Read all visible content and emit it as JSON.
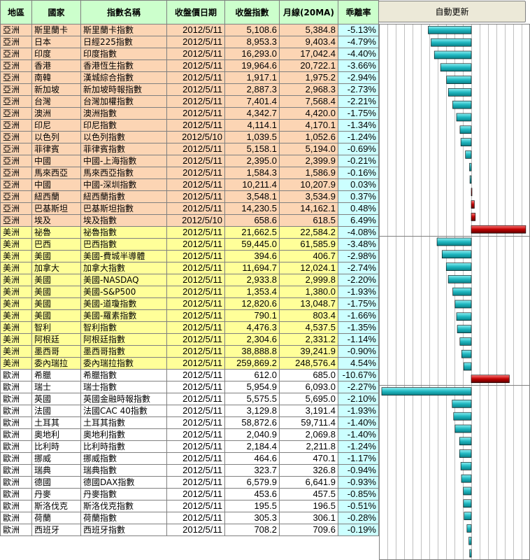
{
  "headers": {
    "region": "地區",
    "country": "國家",
    "index_name": "指數名稱",
    "close_date": "收盤價日期",
    "close": "收盤指數",
    "ma20": "月線(20MA)",
    "deviation": "乖離率"
  },
  "refresh_label": "自動更新",
  "colors": {
    "header_bg": "#ccffcc",
    "asia_bg": "#fcd5b4",
    "america_bg": "#ffff99",
    "europe_bg": "#ffffff",
    "deviation_bg": "#ccffff",
    "bar_negative": "#1fb7c0",
    "bar_positive": "#c00000"
  },
  "rows": [
    {
      "group": "asia",
      "region": "亞洲",
      "country": "斯里蘭卡",
      "name": "斯里蘭卡指數",
      "date": "2012/5/11",
      "close": "5,108.6",
      "ma20": "5,384.8",
      "dev_text": "-5.13%",
      "dev": -5.13
    },
    {
      "group": "asia",
      "region": "亞洲",
      "country": "日本",
      "name": "日經225指數",
      "date": "2012/5/11",
      "close": "8,953.3",
      "ma20": "9,403.4",
      "dev_text": "-4.79%",
      "dev": -4.79
    },
    {
      "group": "asia",
      "region": "亞洲",
      "country": "印度",
      "name": "印度指數",
      "date": "2012/5/11",
      "close": "16,293.0",
      "ma20": "17,042.4",
      "dev_text": "-4.40%",
      "dev": -4.4
    },
    {
      "group": "asia",
      "region": "亞洲",
      "country": "香港",
      "name": "香港恆生指數",
      "date": "2012/5/11",
      "close": "19,964.6",
      "ma20": "20,722.1",
      "dev_text": "-3.66%",
      "dev": -3.66
    },
    {
      "group": "asia",
      "region": "亞洲",
      "country": "南韓",
      "name": "漢城綜合指數",
      "date": "2012/5/11",
      "close": "1,917.1",
      "ma20": "1,975.2",
      "dev_text": "-2.94%",
      "dev": -2.94
    },
    {
      "group": "asia",
      "region": "亞洲",
      "country": "新加坡",
      "name": "新加坡時報指數",
      "date": "2012/5/11",
      "close": "2,887.3",
      "ma20": "2,968.3",
      "dev_text": "-2.73%",
      "dev": -2.73
    },
    {
      "group": "asia",
      "region": "亞洲",
      "country": "台灣",
      "name": "台灣加權指數",
      "date": "2012/5/11",
      "close": "7,401.4",
      "ma20": "7,568.4",
      "dev_text": "-2.21%",
      "dev": -2.21
    },
    {
      "group": "asia",
      "region": "亞洲",
      "country": "澳洲",
      "name": "澳洲指數",
      "date": "2012/5/11",
      "close": "4,342.7",
      "ma20": "4,420.0",
      "dev_text": "-1.75%",
      "dev": -1.75
    },
    {
      "group": "asia",
      "region": "亞洲",
      "country": "印尼",
      "name": "印尼指數",
      "date": "2012/5/11",
      "close": "4,114.1",
      "ma20": "4,170.1",
      "dev_text": "-1.34%",
      "dev": -1.34
    },
    {
      "group": "asia",
      "region": "亞洲",
      "country": "以色列",
      "name": "以色列指數",
      "date": "2012/5/10",
      "close": "1,039.5",
      "ma20": "1,052.6",
      "dev_text": "-1.24%",
      "dev": -1.24
    },
    {
      "group": "asia",
      "region": "亞洲",
      "country": "菲律賓",
      "name": "菲律賓指數",
      "date": "2012/5/11",
      "close": "5,158.1",
      "ma20": "5,194.0",
      "dev_text": "-0.69%",
      "dev": -0.69
    },
    {
      "group": "asia",
      "region": "亞洲",
      "country": "中國",
      "name": "中國-上海指數",
      "date": "2012/5/11",
      "close": "2,395.0",
      "ma20": "2,399.9",
      "dev_text": "-0.21%",
      "dev": -0.21
    },
    {
      "group": "asia",
      "region": "亞洲",
      "country": "馬來西亞",
      "name": "馬來西亞指數",
      "date": "2012/5/11",
      "close": "1,584.3",
      "ma20": "1,586.9",
      "dev_text": "-0.16%",
      "dev": -0.16
    },
    {
      "group": "asia",
      "region": "亞洲",
      "country": "中國",
      "name": "中國-深圳指數",
      "date": "2012/5/11",
      "close": "10,211.4",
      "ma20": "10,207.9",
      "dev_text": "0.03%",
      "dev": 0.03
    },
    {
      "group": "asia",
      "region": "亞洲",
      "country": "紐西蘭",
      "name": "紐西蘭指數",
      "date": "2012/5/11",
      "close": "3,548.1",
      "ma20": "3,534.9",
      "dev_text": "0.37%",
      "dev": 0.37
    },
    {
      "group": "asia",
      "region": "亞洲",
      "country": "巴基斯坦",
      "name": "巴基斯坦指數",
      "date": "2012/5/11",
      "close": "14,230.5",
      "ma20": "14,162.1",
      "dev_text": "0.48%",
      "dev": 0.48
    },
    {
      "group": "asia",
      "region": "亞洲",
      "country": "埃及",
      "name": "埃及指數",
      "date": "2012/5/10",
      "close": "658.6",
      "ma20": "618.5",
      "dev_text": "6.49%",
      "dev": 6.49
    },
    {
      "group": "america",
      "region": "美洲",
      "country": "祕魯",
      "name": "祕魯指數",
      "date": "2012/5/11",
      "close": "21,662.5",
      "ma20": "22,584.2",
      "dev_text": "-4.08%",
      "dev": -4.08
    },
    {
      "group": "america",
      "region": "美洲",
      "country": "巴西",
      "name": "巴西指數",
      "date": "2012/5/11",
      "close": "59,445.0",
      "ma20": "61,585.9",
      "dev_text": "-3.48%",
      "dev": -3.48
    },
    {
      "group": "america",
      "region": "美洲",
      "country": "美國",
      "name": "美國-費城半導體",
      "date": "2012/5/11",
      "close": "394.6",
      "ma20": "406.7",
      "dev_text": "-2.98%",
      "dev": -2.98
    },
    {
      "group": "america",
      "region": "美洲",
      "country": "加拿大",
      "name": "加拿大指數",
      "date": "2012/5/11",
      "close": "11,694.7",
      "ma20": "12,024.1",
      "dev_text": "-2.74%",
      "dev": -2.74
    },
    {
      "group": "america",
      "region": "美洲",
      "country": "美國",
      "name": "美國-NASDAQ",
      "date": "2012/5/11",
      "close": "2,933.8",
      "ma20": "2,999.8",
      "dev_text": "-2.20%",
      "dev": -2.2
    },
    {
      "group": "america",
      "region": "美洲",
      "country": "美國",
      "name": "美國-S&P500",
      "date": "2012/5/11",
      "close": "1,353.4",
      "ma20": "1,380.0",
      "dev_text": "-1.93%",
      "dev": -1.93
    },
    {
      "group": "america",
      "region": "美洲",
      "country": "美國",
      "name": "美國-道瓊指數",
      "date": "2012/5/11",
      "close": "12,820.6",
      "ma20": "13,048.7",
      "dev_text": "-1.75%",
      "dev": -1.75
    },
    {
      "group": "america",
      "region": "美洲",
      "country": "美國",
      "name": "美國-羅素指數",
      "date": "2012/5/11",
      "close": "790.1",
      "ma20": "803.4",
      "dev_text": "-1.66%",
      "dev": -1.66
    },
    {
      "group": "america",
      "region": "美洲",
      "country": "智利",
      "name": "智利指數",
      "date": "2012/5/11",
      "close": "4,476.3",
      "ma20": "4,537.5",
      "dev_text": "-1.35%",
      "dev": -1.35
    },
    {
      "group": "america",
      "region": "美洲",
      "country": "阿根廷",
      "name": "阿根廷指數",
      "date": "2012/5/11",
      "close": "2,304.6",
      "ma20": "2,331.2",
      "dev_text": "-1.14%",
      "dev": -1.14
    },
    {
      "group": "america",
      "region": "美洲",
      "country": "墨西哥",
      "name": "墨西哥指數",
      "date": "2012/5/11",
      "close": "38,888.8",
      "ma20": "39,241.9",
      "dev_text": "-0.90%",
      "dev": -0.9
    },
    {
      "group": "america",
      "region": "美洲",
      "country": "委內瑞拉",
      "name": "委內瑞拉指數",
      "date": "2012/5/11",
      "close": "259,869.2",
      "ma20": "248,576.4",
      "dev_text": "4.54%",
      "dev": 4.54
    },
    {
      "group": "europe",
      "region": "歐洲",
      "country": "希臘",
      "name": "希臘指數",
      "date": "2012/5/11",
      "close": "612.0",
      "ma20": "685.0",
      "dev_text": "-10.67%",
      "dev": -10.67
    },
    {
      "group": "europe",
      "region": "歐洲",
      "country": "瑞士",
      "name": "瑞士指數",
      "date": "2012/5/11",
      "close": "5,954.9",
      "ma20": "6,093.0",
      "dev_text": "-2.27%",
      "dev": -2.27
    },
    {
      "group": "europe",
      "region": "歐洲",
      "country": "英國",
      "name": "英國金融時報指數",
      "date": "2012/5/11",
      "close": "5,575.5",
      "ma20": "5,695.0",
      "dev_text": "-2.10%",
      "dev": -2.1
    },
    {
      "group": "europe",
      "region": "歐洲",
      "country": "法國",
      "name": "法國CAC 40指數",
      "date": "2012/5/11",
      "close": "3,129.8",
      "ma20": "3,191.4",
      "dev_text": "-1.93%",
      "dev": -1.93
    },
    {
      "group": "europe",
      "region": "歐洲",
      "country": "土耳其",
      "name": "土耳其指數",
      "date": "2012/5/11",
      "close": "58,872.6",
      "ma20": "59,711.4",
      "dev_text": "-1.40%",
      "dev": -1.4
    },
    {
      "group": "europe",
      "region": "歐洲",
      "country": "奧地利",
      "name": "奧地利指數",
      "date": "2012/5/11",
      "close": "2,040.9",
      "ma20": "2,069.8",
      "dev_text": "-1.40%",
      "dev": -1.4
    },
    {
      "group": "europe",
      "region": "歐洲",
      "country": "比利時",
      "name": "比利時指數",
      "date": "2012/5/11",
      "close": "2,184.4",
      "ma20": "2,211.8",
      "dev_text": "-1.24%",
      "dev": -1.24
    },
    {
      "group": "europe",
      "region": "歐洲",
      "country": "挪威",
      "name": "挪威指數",
      "date": "2012/5/11",
      "close": "464.6",
      "ma20": "470.1",
      "dev_text": "-1.17%",
      "dev": -1.17
    },
    {
      "group": "europe",
      "region": "歐洲",
      "country": "瑞典",
      "name": "瑞典指數",
      "date": "2012/5/11",
      "close": "323.7",
      "ma20": "326.8",
      "dev_text": "-0.94%",
      "dev": -0.94
    },
    {
      "group": "europe",
      "region": "歐洲",
      "country": "德國",
      "name": "德國DAX指數",
      "date": "2012/5/11",
      "close": "6,579.9",
      "ma20": "6,641.9",
      "dev_text": "-0.93%",
      "dev": -0.93
    },
    {
      "group": "europe",
      "region": "歐洲",
      "country": "丹麥",
      "name": "丹麥指數",
      "date": "2012/5/11",
      "close": "453.6",
      "ma20": "457.5",
      "dev_text": "-0.85%",
      "dev": -0.85
    },
    {
      "group": "europe",
      "region": "歐洲",
      "country": "斯洛伐克",
      "name": "斯洛伐克指數",
      "date": "2012/5/11",
      "close": "195.5",
      "ma20": "196.5",
      "dev_text": "-0.51%",
      "dev": -0.51
    },
    {
      "group": "europe",
      "region": "歐洲",
      "country": "荷蘭",
      "name": "荷蘭指數",
      "date": "2012/5/11",
      "close": "305.3",
      "ma20": "306.1",
      "dev_text": "-0.28%",
      "dev": -0.28
    },
    {
      "group": "europe",
      "region": "歐洲",
      "country": "西班牙",
      "name": "西班牙指數",
      "date": "2012/5/11",
      "close": "708.2",
      "ma20": "709.6",
      "dev_text": "-0.19%",
      "dev": -0.19
    }
  ],
  "chart_data": {
    "type": "bar",
    "orientation": "horizontal",
    "x_range": [
      -11,
      7
    ],
    "grid": true,
    "groups": [
      {
        "group": "asia",
        "values": [
          -5.13,
          -4.79,
          -4.4,
          -3.66,
          -2.94,
          -2.73,
          -2.21,
          -1.75,
          -1.34,
          -1.24,
          -0.69,
          -0.21,
          -0.16,
          0.03,
          0.37,
          0.48,
          6.49
        ]
      },
      {
        "group": "america",
        "values": [
          -4.08,
          -3.48,
          -2.98,
          -2.74,
          -2.2,
          -1.93,
          -1.75,
          -1.66,
          -1.35,
          -1.14,
          -0.9,
          4.54
        ]
      },
      {
        "group": "europe",
        "values": [
          -10.67,
          -2.27,
          -2.1,
          -1.93,
          -1.4,
          -1.4,
          -1.24,
          -1.17,
          -0.94,
          -0.93,
          -0.85,
          -0.51,
          -0.28,
          -0.19
        ]
      }
    ]
  }
}
